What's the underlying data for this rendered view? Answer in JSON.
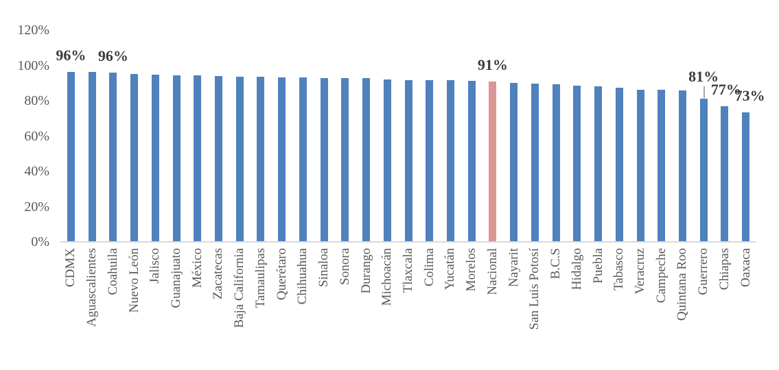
{
  "chart_data": {
    "type": "bar",
    "title": "",
    "orientation": "vertical",
    "grid": false,
    "legend": false,
    "value_format": "percent",
    "ylim": [
      0,
      120
    ],
    "yticks": [
      {
        "value": 0,
        "label": "0%"
      },
      {
        "value": 20,
        "label": "20%"
      },
      {
        "value": 40,
        "label": "40%"
      },
      {
        "value": 60,
        "label": "60%"
      },
      {
        "value": 80,
        "label": "80%"
      },
      {
        "value": 100,
        "label": "100%"
      },
      {
        "value": 120,
        "label": "120%"
      }
    ],
    "categories": [
      "CDMX",
      "Aguascalientes",
      "Coahuila",
      "Nuevo León",
      "Jalisco",
      "Guanajuato",
      "México",
      "Zacatecas",
      "Baja California",
      "Tamaulipas",
      "Querétaro",
      "Chihuahua",
      "Sinaloa",
      "Sonora",
      "Durango",
      "Michoacán",
      "Tlaxcala",
      "Colima",
      "Yucatán",
      "Morelos",
      "Nacional",
      "Nayarit",
      "San Luis Potosí",
      "B.C.S",
      "Hidalgo",
      "Puebla",
      "Tabasco",
      "Veracruz",
      "Campeche",
      "Quintana Roo",
      "Guerrero",
      "Chiapas",
      "Oaxaca"
    ],
    "values": [
      96.5,
      96.2,
      96.0,
      95.3,
      94.8,
      94.5,
      94.4,
      94.1,
      93.6,
      93.4,
      93.3,
      93.2,
      93.0,
      92.9,
      92.7,
      92.2,
      91.8,
      91.6,
      91.5,
      91.4,
      91.0,
      90.1,
      89.6,
      89.4,
      88.7,
      88.3,
      87.2,
      86.4,
      86.2,
      85.8,
      81.0,
      77.0,
      73.4
    ],
    "highlight_category": "Nacional",
    "data_labels": [
      {
        "category": "CDMX",
        "text": "96%"
      },
      {
        "category": "Coahuila",
        "text": "96%"
      },
      {
        "category": "Nacional",
        "text": "91%"
      },
      {
        "category": "Guerrero",
        "text": "81%",
        "leader_line": true
      },
      {
        "category": "Chiapas",
        "text": "77%",
        "dx": 2
      },
      {
        "category": "Oaxaca",
        "text": "73%",
        "dx": 6
      }
    ],
    "colors": {
      "bar": "#4f81bd",
      "highlight": "#d99694",
      "axis_line": "#d9d9d9",
      "tick_text": "#595959",
      "label_text": "#3b3b3b",
      "leader_line": "#a6a6a6"
    }
  }
}
